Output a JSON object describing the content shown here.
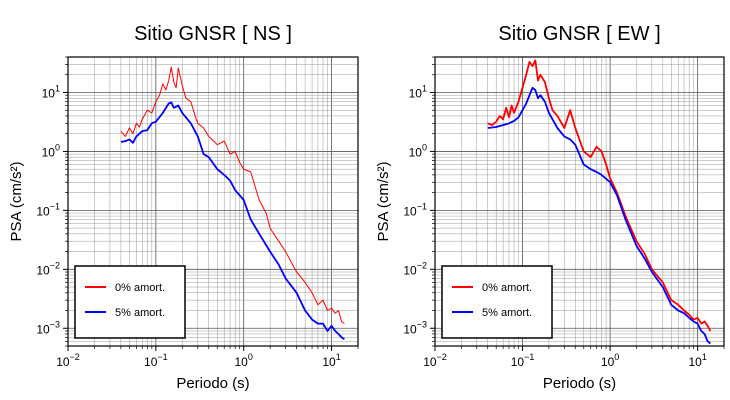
{
  "chart_data": [
    {
      "type": "line",
      "title": "Sitio GNSR [ NS ]",
      "xlabel": "Periodo (s)",
      "ylabel": "PSA (cm/s²)",
      "xscale": "log",
      "yscale": "log",
      "xlim": [
        0.01,
        20
      ],
      "ylim": [
        0.0005,
        40
      ],
      "grid": true,
      "legend": "bottom-left",
      "x_ticks": [
        {
          "base": "10",
          "exp": "−2"
        },
        {
          "base": "10",
          "exp": "−1"
        },
        {
          "base": "10",
          "exp": "0"
        },
        {
          "base": "10",
          "exp": "1"
        }
      ],
      "y_ticks": [
        {
          "base": "10",
          "exp": "−3"
        },
        {
          "base": "10",
          "exp": "−2"
        },
        {
          "base": "10",
          "exp": "−1"
        },
        {
          "base": "10",
          "exp": "0"
        },
        {
          "base": "10",
          "exp": "1"
        }
      ],
      "series": [
        {
          "name": "0% amort.",
          "color": "#ff0000",
          "x": [
            0.04,
            0.045,
            0.05,
            0.055,
            0.06,
            0.065,
            0.07,
            0.08,
            0.09,
            0.1,
            0.11,
            0.12,
            0.13,
            0.14,
            0.15,
            0.16,
            0.17,
            0.18,
            0.2,
            0.22,
            0.25,
            0.28,
            0.3,
            0.35,
            0.4,
            0.5,
            0.6,
            0.7,
            0.8,
            0.9,
            1.0,
            1.2,
            1.5,
            1.8,
            2.0,
            2.5,
            3.0,
            4.0,
            5.0,
            6.0,
            7.0,
            8.0,
            9.0,
            10.0,
            11.0,
            12.0,
            13.0,
            14.0
          ],
          "y": [
            2.2,
            1.8,
            2.5,
            2.0,
            3.0,
            2.6,
            3.5,
            5.0,
            4.5,
            7.0,
            9.0,
            14,
            11,
            16,
            27,
            15,
            12,
            26,
            13,
            8,
            7,
            4,
            3,
            2.5,
            1.8,
            1.3,
            1.5,
            0.9,
            1.0,
            0.65,
            0.5,
            0.45,
            0.15,
            0.09,
            0.05,
            0.03,
            0.02,
            0.009,
            0.006,
            0.004,
            0.0025,
            0.003,
            0.002,
            0.0022,
            0.0018,
            0.002,
            0.0013,
            0.0012
          ]
        },
        {
          "name": "5% amort.",
          "color": "#0000ff",
          "x": [
            0.04,
            0.045,
            0.05,
            0.055,
            0.06,
            0.07,
            0.08,
            0.09,
            0.1,
            0.12,
            0.14,
            0.15,
            0.16,
            0.18,
            0.2,
            0.25,
            0.3,
            0.35,
            0.4,
            0.5,
            0.6,
            0.7,
            0.8,
            1.0,
            1.2,
            1.5,
            2.0,
            2.5,
            3.0,
            4.0,
            5.0,
            6.0,
            7.0,
            8.0,
            9.0,
            10.0,
            11.0,
            12.0,
            13.0,
            14.0
          ],
          "y": [
            1.45,
            1.5,
            1.6,
            1.4,
            1.8,
            2.2,
            2.3,
            3.0,
            3.2,
            4.5,
            6.5,
            6.8,
            5.5,
            6.0,
            4.5,
            3.0,
            1.8,
            0.9,
            0.8,
            0.5,
            0.4,
            0.32,
            0.22,
            0.15,
            0.07,
            0.04,
            0.02,
            0.012,
            0.007,
            0.004,
            0.002,
            0.0014,
            0.0012,
            0.0012,
            0.0009,
            0.0011,
            0.0009,
            0.0008,
            0.0007,
            0.00065
          ]
        }
      ]
    },
    {
      "type": "line",
      "title": "Sitio GNSR [ EW ]",
      "xlabel": "Periodo (s)",
      "ylabel": "PSA (cm/s²)",
      "xscale": "log",
      "yscale": "log",
      "xlim": [
        0.01,
        20
      ],
      "ylim": [
        0.0005,
        40
      ],
      "grid": true,
      "legend": "bottom-left",
      "x_ticks": [
        {
          "base": "10",
          "exp": "−2"
        },
        {
          "base": "10",
          "exp": "−1"
        },
        {
          "base": "10",
          "exp": "0"
        },
        {
          "base": "10",
          "exp": "1"
        }
      ],
      "y_ticks": [
        {
          "base": "10",
          "exp": "−3"
        },
        {
          "base": "10",
          "exp": "−2"
        },
        {
          "base": "10",
          "exp": "−1"
        },
        {
          "base": "10",
          "exp": "0"
        },
        {
          "base": "10",
          "exp": "1"
        }
      ],
      "series": [
        {
          "name": "0% amort.",
          "color": "#ff0000",
          "x": [
            0.04,
            0.045,
            0.05,
            0.055,
            0.06,
            0.065,
            0.07,
            0.075,
            0.08,
            0.09,
            0.1,
            0.11,
            0.12,
            0.13,
            0.14,
            0.15,
            0.16,
            0.18,
            0.2,
            0.22,
            0.25,
            0.3,
            0.35,
            0.4,
            0.5,
            0.6,
            0.7,
            0.8,
            0.9,
            1.0,
            1.2,
            1.5,
            2.0,
            2.5,
            3.0,
            4.0,
            5.0,
            6.0,
            7.0,
            8.0,
            9.0,
            10.0,
            11.0,
            12.0,
            13.0,
            14.0
          ],
          "y": [
            3.0,
            2.8,
            3.2,
            4.0,
            3.5,
            5.5,
            3.8,
            6.0,
            4.5,
            7.0,
            12,
            20,
            33,
            28,
            35,
            16,
            20,
            15,
            8,
            5,
            4,
            2.5,
            5,
            2.5,
            1.0,
            0.8,
            1.2,
            1.0,
            0.6,
            0.35,
            0.2,
            0.08,
            0.03,
            0.018,
            0.01,
            0.006,
            0.003,
            0.0025,
            0.002,
            0.0017,
            0.0014,
            0.0015,
            0.0012,
            0.0013,
            0.0011,
            0.0009
          ]
        },
        {
          "name": "5% amort.",
          "color": "#0000ff",
          "x": [
            0.04,
            0.05,
            0.06,
            0.07,
            0.08,
            0.09,
            0.1,
            0.11,
            0.12,
            0.13,
            0.14,
            0.15,
            0.16,
            0.18,
            0.2,
            0.25,
            0.3,
            0.35,
            0.4,
            0.5,
            0.6,
            0.7,
            0.8,
            1.0,
            1.2,
            1.5,
            2.0,
            2.5,
            3.0,
            4.0,
            5.0,
            6.0,
            7.0,
            8.0,
            9.0,
            10.0,
            11.0,
            12.0,
            13.0,
            14.0
          ],
          "y": [
            2.5,
            2.6,
            2.8,
            3.0,
            3.3,
            3.8,
            5.0,
            6.5,
            9.0,
            12,
            11,
            8,
            9,
            7,
            4.5,
            2.5,
            1.8,
            1.6,
            1.3,
            0.6,
            0.5,
            0.45,
            0.4,
            0.3,
            0.18,
            0.07,
            0.025,
            0.015,
            0.009,
            0.005,
            0.0025,
            0.002,
            0.0018,
            0.0015,
            0.0013,
            0.0012,
            0.0009,
            0.0008,
            0.0006,
            0.00055
          ]
        }
      ]
    }
  ]
}
